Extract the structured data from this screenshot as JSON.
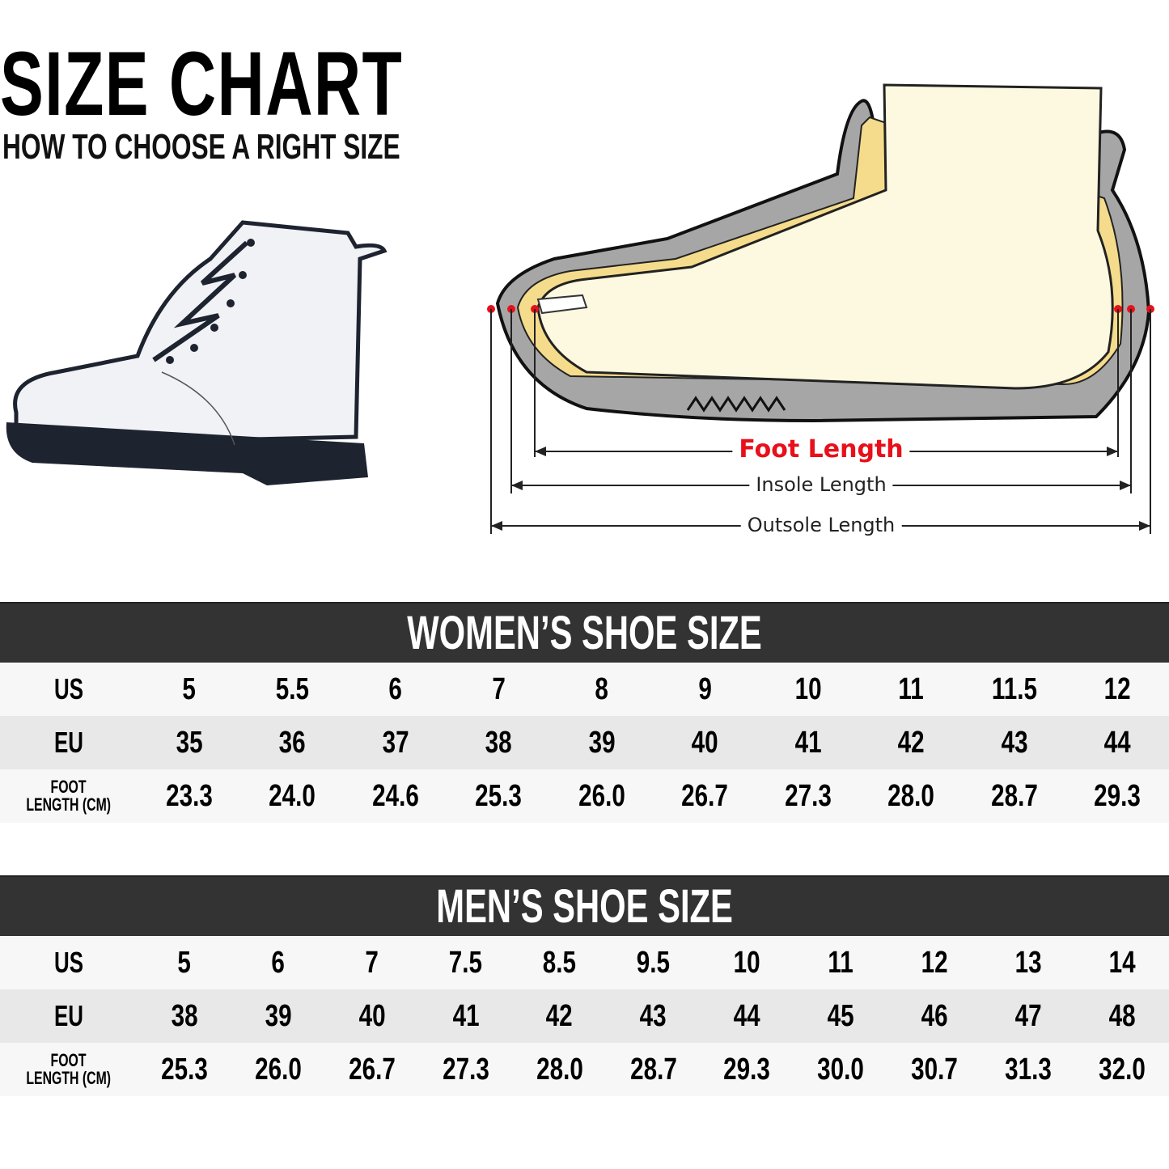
{
  "header": {
    "title": "SIZE CHART",
    "subtitle": "HOW TO CHOOSE A RIGHT SIZE"
  },
  "diagram": {
    "foot_length_label": "Foot Length",
    "insole_length_label": "Insole Length",
    "outsole_length_label": "Outsole Length",
    "colors": {
      "accent": "#e8101a",
      "sole": "#a6a6a6",
      "insole": "#f5dc8c",
      "foot": "#fdf9e1"
    }
  },
  "women": {
    "title": "WOMEN’S SHOE SIZE",
    "rows": [
      {
        "label": "US",
        "values": [
          "5",
          "5.5",
          "6",
          "7",
          "8",
          "9",
          "10",
          "11",
          "11.5",
          "12"
        ]
      },
      {
        "label": "EU",
        "values": [
          "35",
          "36",
          "37",
          "38",
          "39",
          "40",
          "41",
          "42",
          "43",
          "44"
        ]
      },
      {
        "label_line1": "FOOT",
        "label_line2": "LENGTH (CM)",
        "values": [
          "23.3",
          "24.0",
          "24.6",
          "25.3",
          "26.0",
          "26.7",
          "27.3",
          "28.0",
          "28.7",
          "29.3"
        ]
      }
    ]
  },
  "men": {
    "title": "MEN’S SHOE SIZE",
    "rows": [
      {
        "label": "US",
        "values": [
          "5",
          "6",
          "7",
          "7.5",
          "8.5",
          "9.5",
          "10",
          "11",
          "12",
          "13",
          "14"
        ]
      },
      {
        "label": "EU",
        "values": [
          "38",
          "39",
          "40",
          "41",
          "42",
          "43",
          "44",
          "45",
          "46",
          "47",
          "48"
        ]
      },
      {
        "label_line1": "FOOT",
        "label_line2": "LENGTH (CM)",
        "values": [
          "25.3",
          "26.0",
          "26.7",
          "27.3",
          "28.0",
          "28.7",
          "29.3",
          "30.0",
          "30.7",
          "31.3",
          "32.0"
        ]
      }
    ]
  }
}
